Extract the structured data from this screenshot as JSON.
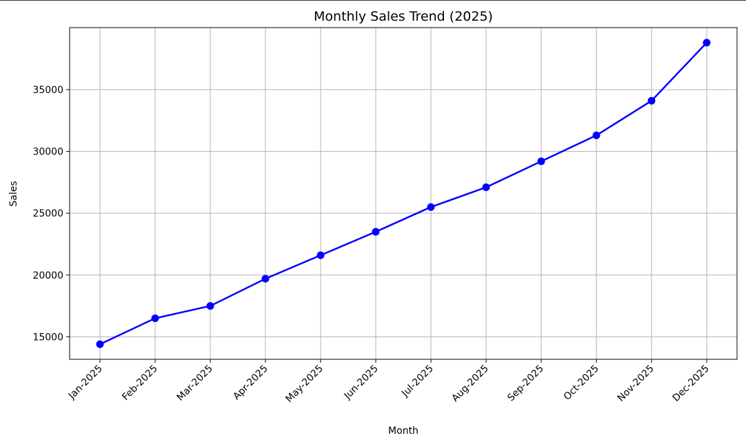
{
  "chart_data": {
    "type": "line",
    "title": "Monthly Sales Trend (2025)",
    "x_label": "Month",
    "y_label": "Sales",
    "categories": [
      "Jan-2025",
      "Feb-2025",
      "Mar-2025",
      "Apr-2025",
      "May-2025",
      "Jun-2025",
      "Jul-2025",
      "Aug-2025",
      "Sep-2025",
      "Oct-2025",
      "Nov-2025",
      "Dec-2025"
    ],
    "series": [
      {
        "name": "Sales",
        "color": "#0000ff",
        "values": [
          14400,
          16500,
          17500,
          19700,
          21600,
          23500,
          25500,
          27100,
          29200,
          31300,
          34100,
          38800
        ]
      }
    ],
    "ylim": [
      13180,
      40020
    ],
    "yticks": [
      15000,
      20000,
      25000,
      30000,
      35000
    ],
    "grid": true
  }
}
